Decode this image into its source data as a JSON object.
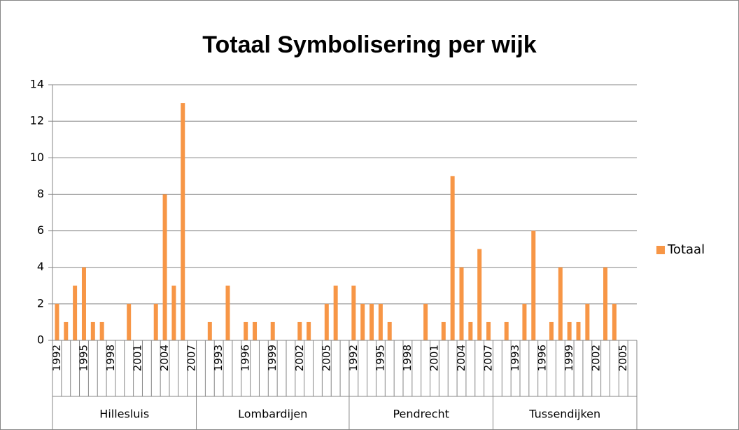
{
  "chart_data": {
    "type": "bar",
    "title": "Totaal Symbolisering per wijk",
    "groups": [
      {
        "name": "Hillesluis",
        "count": 16
      },
      {
        "name": "Lombardijen",
        "count": 17
      },
      {
        "name": "Pendrecht",
        "count": 16
      },
      {
        "name": "Tussendijken",
        "count": 16
      }
    ],
    "categories": [
      "1992",
      null,
      null,
      "1995",
      null,
      null,
      "1998",
      null,
      null,
      "2001",
      null,
      null,
      "2004",
      null,
      null,
      "2007",
      null,
      null,
      "1993",
      null,
      null,
      "1996",
      null,
      null,
      "1999",
      null,
      null,
      "2002",
      null,
      null,
      "2005",
      null,
      null,
      "1992",
      null,
      null,
      "1995",
      null,
      null,
      "1998",
      null,
      null,
      "2001",
      null,
      null,
      "2004",
      null,
      null,
      "2007",
      null,
      null,
      "1993",
      null,
      null,
      "1996",
      null,
      null,
      "1999",
      null,
      null,
      "2002",
      null,
      null,
      "2005",
      null
    ],
    "series": [
      {
        "name": "Totaal",
        "color": "#f79646",
        "values": [
          2,
          1,
          3,
          4,
          1,
          1,
          0,
          0,
          2,
          0,
          0,
          2,
          8,
          3,
          13,
          0,
          0,
          1,
          0,
          3,
          0,
          1,
          1,
          0,
          1,
          0,
          0,
          1,
          1,
          0,
          2,
          3,
          0,
          3,
          2,
          2,
          2,
          1,
          0,
          0,
          0,
          2,
          0,
          1,
          9,
          4,
          1,
          5,
          1,
          0,
          1,
          0,
          2,
          6,
          0,
          1,
          4,
          1,
          1,
          2,
          0,
          4,
          2,
          0,
          0
        ]
      }
    ],
    "ylim": [
      0,
      14
    ],
    "yticks": [
      0,
      2,
      4,
      6,
      8,
      10,
      12,
      14
    ],
    "grid": true,
    "legend": "right"
  }
}
